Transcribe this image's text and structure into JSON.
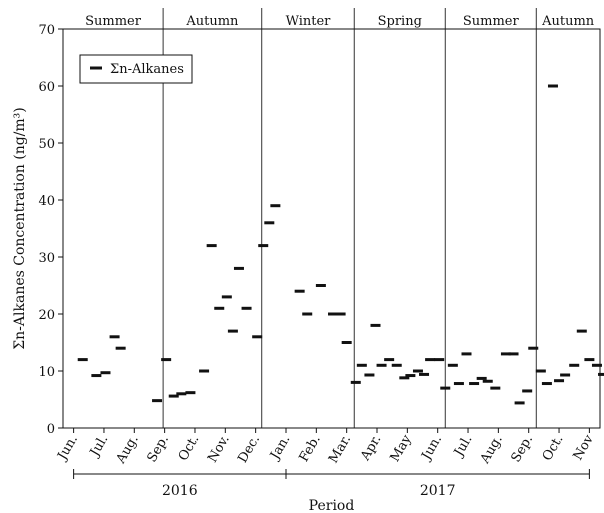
{
  "chart_data": {
    "type": "scatter",
    "marker": "dash",
    "ylabel": "Σn-Alkanes Concentration (ng/m³)",
    "xlabel": "Period",
    "ylim": [
      0,
      70
    ],
    "yticks": [
      0,
      10,
      20,
      30,
      40,
      50,
      60,
      70
    ],
    "grid": false,
    "legend": {
      "position": "top-left",
      "entries": [
        "Σn-Alkanes"
      ]
    },
    "months": [
      "Jun.",
      "Jul.",
      "Aug.",
      "Sep.",
      "Oct.",
      "Nov.",
      "Dec.",
      "Jan.",
      "Feb.",
      "Mar.",
      "Apr.",
      "May",
      "Jun.",
      "Jul.",
      "Aug.",
      "Sep.",
      "Oct.",
      "Nov"
    ],
    "years": [
      {
        "label": "2016",
        "start": 0,
        "end": 7
      },
      {
        "label": "2017",
        "start": 7,
        "end": 17
      }
    ],
    "seasons": [
      {
        "label": "Summer",
        "start": -0.35,
        "end": 2.95
      },
      {
        "label": "Autumn",
        "start": 2.95,
        "end": 6.2
      },
      {
        "label": "Winter",
        "start": 6.2,
        "end": 9.25
      },
      {
        "label": "Spring",
        "start": 9.25,
        "end": 12.25
      },
      {
        "label": "Summer",
        "start": 12.25,
        "end": 15.25
      },
      {
        "label": "Autumn",
        "start": 15.25,
        "end": 17.35
      }
    ],
    "series": [
      {
        "name": "Σn-Alkanes",
        "points": [
          {
            "x": 0.3,
            "y": 12
          },
          {
            "x": 0.75,
            "y": 9.2
          },
          {
            "x": 1.05,
            "y": 9.7
          },
          {
            "x": 1.35,
            "y": 16
          },
          {
            "x": 1.55,
            "y": 14
          },
          {
            "x": 2.75,
            "y": 4.8
          },
          {
            "x": 3.05,
            "y": 12
          },
          {
            "x": 3.3,
            "y": 5.6
          },
          {
            "x": 3.55,
            "y": 6.0
          },
          {
            "x": 3.85,
            "y": 6.2
          },
          {
            "x": 4.3,
            "y": 10
          },
          {
            "x": 4.55,
            "y": 32
          },
          {
            "x": 4.8,
            "y": 21
          },
          {
            "x": 5.05,
            "y": 23
          },
          {
            "x": 5.25,
            "y": 17
          },
          {
            "x": 5.45,
            "y": 28
          },
          {
            "x": 5.7,
            "y": 21
          },
          {
            "x": 6.05,
            "y": 16
          },
          {
            "x": 6.25,
            "y": 32
          },
          {
            "x": 6.45,
            "y": 36
          },
          {
            "x": 6.65,
            "y": 39
          },
          {
            "x": 7.45,
            "y": 24
          },
          {
            "x": 7.7,
            "y": 20
          },
          {
            "x": 8.15,
            "y": 25
          },
          {
            "x": 8.55,
            "y": 20
          },
          {
            "x": 8.8,
            "y": 20
          },
          {
            "x": 9.0,
            "y": 15
          },
          {
            "x": 9.3,
            "y": 8
          },
          {
            "x": 9.5,
            "y": 11
          },
          {
            "x": 9.75,
            "y": 9.3
          },
          {
            "x": 9.95,
            "y": 18
          },
          {
            "x": 10.15,
            "y": 11
          },
          {
            "x": 10.4,
            "y": 12
          },
          {
            "x": 10.65,
            "y": 11
          },
          {
            "x": 10.9,
            "y": 8.8
          },
          {
            "x": 11.1,
            "y": 9.2
          },
          {
            "x": 11.35,
            "y": 10
          },
          {
            "x": 11.55,
            "y": 9.4
          },
          {
            "x": 11.75,
            "y": 12
          },
          {
            "x": 12.05,
            "y": 12
          },
          {
            "x": 12.25,
            "y": 7.0
          },
          {
            "x": 12.5,
            "y": 11
          },
          {
            "x": 12.7,
            "y": 7.8
          },
          {
            "x": 12.95,
            "y": 13
          },
          {
            "x": 13.2,
            "y": 7.8
          },
          {
            "x": 13.45,
            "y": 8.7
          },
          {
            "x": 13.65,
            "y": 8.2
          },
          {
            "x": 13.9,
            "y": 7.0
          },
          {
            "x": 14.25,
            "y": 13
          },
          {
            "x": 14.5,
            "y": 13
          },
          {
            "x": 14.7,
            "y": 4.4
          },
          {
            "x": 14.95,
            "y": 6.5
          },
          {
            "x": 15.15,
            "y": 14
          },
          {
            "x": 15.4,
            "y": 10
          },
          {
            "x": 15.6,
            "y": 7.8
          },
          {
            "x": 15.8,
            "y": 60
          },
          {
            "x": 16.0,
            "y": 8.3
          },
          {
            "x": 16.2,
            "y": 9.3
          },
          {
            "x": 16.5,
            "y": 11
          },
          {
            "x": 16.75,
            "y": 17
          },
          {
            "x": 17.0,
            "y": 12
          },
          {
            "x": 17.25,
            "y": 11
          },
          {
            "x": 17.45,
            "y": 9.4
          },
          {
            "x": 17.75,
            "y": 9.4
          }
        ]
      }
    ]
  }
}
